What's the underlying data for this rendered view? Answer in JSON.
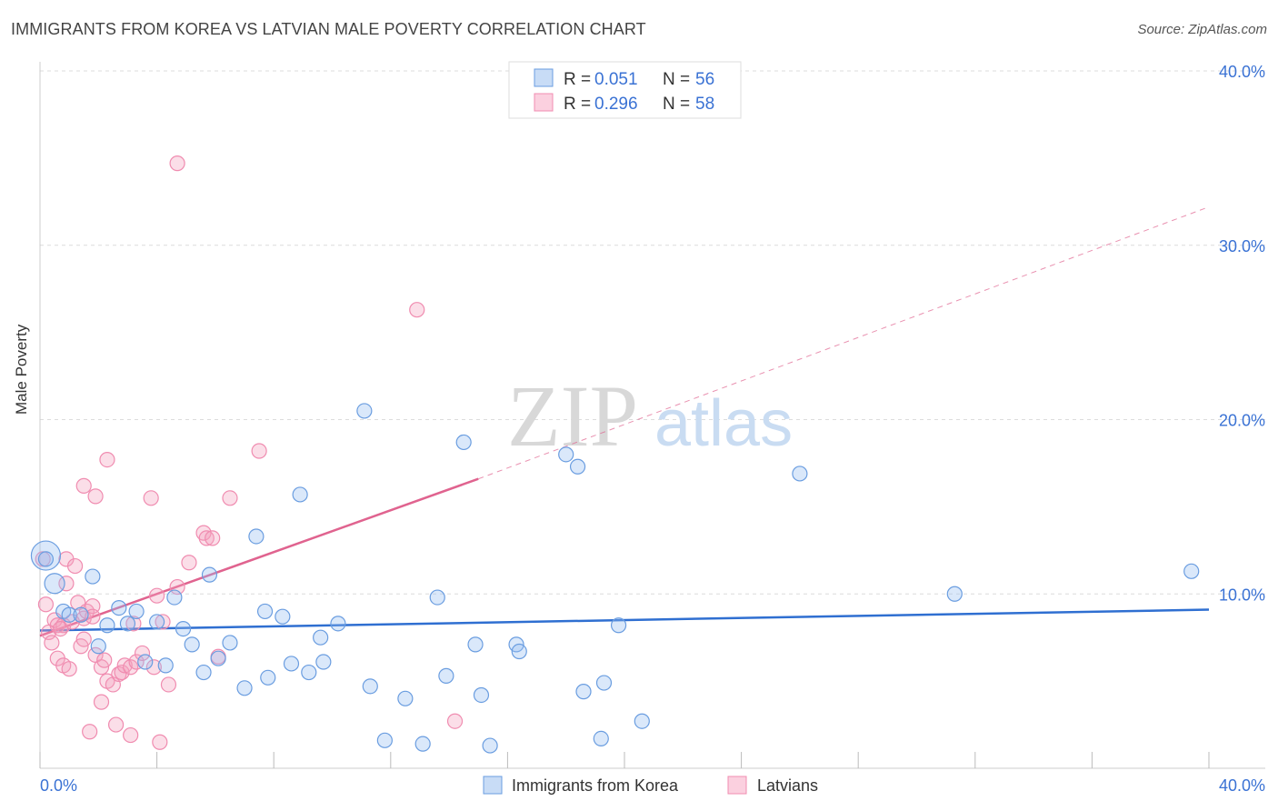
{
  "title": "IMMIGRANTS FROM KOREA VS LATVIAN MALE POVERTY CORRELATION CHART",
  "source": "Source: ZipAtlas.com",
  "watermark": {
    "zip": "ZIP",
    "atlas": "atlas"
  },
  "legend": {
    "rows": [
      {
        "r_label": "R =",
        "r_value": "0.051",
        "n_label": "N =",
        "n_value": "56"
      },
      {
        "r_label": "R =",
        "r_value": "0.296",
        "n_label": "N =",
        "n_value": "58"
      }
    ]
  },
  "bottom_legend": [
    "Immigrants from Korea",
    "Latvians"
  ],
  "chart_data": {
    "type": "scatter",
    "title": "IMMIGRANTS FROM KOREA VS LATVIAN MALE POVERTY CORRELATION CHART",
    "xlabel": "",
    "ylabel": "Male Poverty",
    "xlim": [
      0,
      40
    ],
    "ylim": [
      0,
      40
    ],
    "x_tick_labels": [
      "0.0%",
      "40.0%"
    ],
    "y_tick_labels": [
      "10.0%",
      "20.0%",
      "30.0%",
      "40.0%"
    ],
    "y_ticks": [
      10,
      20,
      30,
      40
    ],
    "grid": true,
    "legend_position": "top-center",
    "colors": {
      "korea": "#6a9de0",
      "latvians": "#f08cb0",
      "korea_line": "#2f6fd1",
      "latvians_line": "#e0638f",
      "tick_text": "#3a72d4"
    },
    "series": [
      {
        "name": "Immigrants from Korea",
        "r": 0.051,
        "n": 56,
        "trend": {
          "x": [
            0,
            40
          ],
          "y": [
            7.9,
            9.1
          ]
        },
        "points": [
          [
            0.2,
            12.2
          ],
          [
            0.5,
            10.6
          ],
          [
            0.8,
            9.0
          ],
          [
            1.0,
            8.8
          ],
          [
            1.4,
            8.8
          ],
          [
            1.8,
            11.0
          ],
          [
            2.0,
            7.0
          ],
          [
            2.3,
            8.2
          ],
          [
            2.7,
            9.2
          ],
          [
            3.3,
            9.0
          ],
          [
            3.0,
            8.3
          ],
          [
            3.6,
            6.1
          ],
          [
            4.0,
            8.4
          ],
          [
            4.3,
            5.9
          ],
          [
            4.6,
            9.8
          ],
          [
            4.9,
            8.0
          ],
          [
            5.2,
            7.1
          ],
          [
            5.6,
            5.5
          ],
          [
            5.8,
            11.1
          ],
          [
            6.1,
            6.3
          ],
          [
            6.5,
            7.2
          ],
          [
            7.0,
            4.6
          ],
          [
            7.4,
            13.3
          ],
          [
            7.7,
            9.0
          ],
          [
            7.8,
            5.2
          ],
          [
            8.3,
            8.7
          ],
          [
            8.6,
            6.0
          ],
          [
            8.9,
            15.7
          ],
          [
            9.2,
            5.5
          ],
          [
            9.6,
            7.5
          ],
          [
            9.7,
            6.1
          ],
          [
            10.2,
            8.3
          ],
          [
            11.1,
            20.5
          ],
          [
            11.3,
            4.7
          ],
          [
            11.8,
            1.6
          ],
          [
            12.5,
            4.0
          ],
          [
            13.1,
            1.4
          ],
          [
            13.6,
            9.8
          ],
          [
            13.9,
            5.3
          ],
          [
            14.5,
            18.7
          ],
          [
            14.9,
            7.1
          ],
          [
            15.1,
            4.2
          ],
          [
            15.4,
            1.3
          ],
          [
            16.3,
            7.1
          ],
          [
            16.4,
            6.7
          ],
          [
            18.0,
            18.0
          ],
          [
            18.4,
            17.3
          ],
          [
            18.6,
            4.4
          ],
          [
            19.2,
            1.7
          ],
          [
            19.3,
            4.9
          ],
          [
            19.8,
            8.2
          ],
          [
            20.6,
            2.7
          ],
          [
            26.0,
            16.9
          ],
          [
            31.3,
            10.0
          ],
          [
            39.4,
            11.3
          ],
          [
            0.2,
            12.0
          ]
        ]
      },
      {
        "name": "Latvians",
        "r": 0.296,
        "n": 58,
        "trend": {
          "x": [
            0,
            15
          ],
          "y": [
            7.6,
            16.6
          ]
        },
        "trend_extension": {
          "x": [
            15,
            40
          ],
          "y": [
            16.6,
            32.2
          ]
        },
        "points": [
          [
            0.1,
            12.0
          ],
          [
            0.2,
            9.4
          ],
          [
            0.3,
            7.8
          ],
          [
            0.4,
            7.2
          ],
          [
            0.5,
            8.5
          ],
          [
            0.6,
            8.2
          ],
          [
            0.6,
            6.3
          ],
          [
            0.8,
            8.2
          ],
          [
            0.8,
            5.9
          ],
          [
            0.9,
            12.0
          ],
          [
            0.9,
            10.6
          ],
          [
            1.0,
            5.7
          ],
          [
            1.2,
            11.6
          ],
          [
            1.3,
            9.5
          ],
          [
            1.4,
            7.0
          ],
          [
            1.5,
            8.6
          ],
          [
            1.5,
            7.4
          ],
          [
            1.5,
            16.2
          ],
          [
            1.6,
            9.0
          ],
          [
            1.7,
            2.1
          ],
          [
            1.8,
            9.3
          ],
          [
            1.8,
            8.7
          ],
          [
            1.9,
            15.6
          ],
          [
            1.9,
            6.5
          ],
          [
            2.1,
            5.8
          ],
          [
            2.1,
            3.8
          ],
          [
            2.2,
            6.2
          ],
          [
            2.3,
            17.7
          ],
          [
            2.3,
            5.0
          ],
          [
            2.5,
            4.8
          ],
          [
            2.6,
            2.5
          ],
          [
            2.7,
            5.4
          ],
          [
            2.8,
            5.5
          ],
          [
            2.9,
            5.9
          ],
          [
            3.1,
            5.8
          ],
          [
            3.1,
            1.9
          ],
          [
            3.2,
            8.3
          ],
          [
            3.3,
            6.1
          ],
          [
            3.5,
            6.6
          ],
          [
            3.8,
            15.5
          ],
          [
            3.9,
            5.8
          ],
          [
            4.0,
            9.9
          ],
          [
            4.1,
            1.5
          ],
          [
            4.2,
            8.4
          ],
          [
            4.4,
            4.8
          ],
          [
            4.7,
            34.7
          ],
          [
            4.7,
            10.4
          ],
          [
            5.1,
            11.8
          ],
          [
            5.6,
            13.5
          ],
          [
            5.7,
            13.2
          ],
          [
            5.9,
            13.2
          ],
          [
            6.1,
            6.4
          ],
          [
            6.5,
            15.5
          ],
          [
            7.5,
            18.2
          ],
          [
            12.9,
            26.3
          ],
          [
            14.2,
            2.7
          ],
          [
            0.7,
            8.0
          ],
          [
            1.1,
            8.4
          ]
        ]
      }
    ]
  }
}
